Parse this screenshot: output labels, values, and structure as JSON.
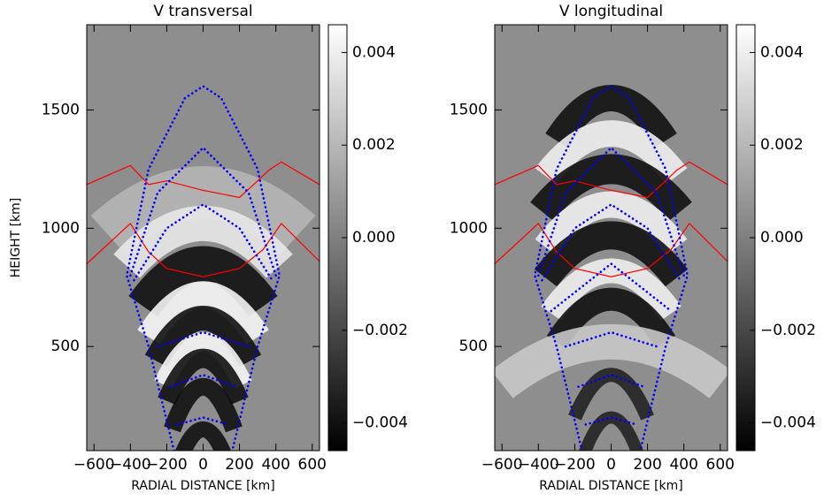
{
  "chart_data": [
    {
      "type": "line",
      "title": "V transversal",
      "xlabel": "RADIAL DISTANCE [km]",
      "ylabel": "HEIGHT [km]",
      "xlim": [
        -640,
        640
      ],
      "ylim": [
        60,
        1860
      ],
      "xticks": [
        {
          "value": -600,
          "label": "−600"
        },
        {
          "value": -400,
          "label": "−400"
        },
        {
          "value": -200,
          "label": "−200"
        },
        0,
        200,
        400,
        600
      ],
      "yticks": [
        500,
        1000,
        1500
      ],
      "colorbar": {
        "lim": [
          -0.0046,
          0.0046
        ],
        "ticks": [
          0.004,
          0.002,
          {
            "value": 0,
            "label": "0.000"
          },
          {
            "value": -0.002,
            "label": "−0.002"
          },
          {
            "value": -0.004,
            "label": "−0.004"
          }
        ]
      },
      "series": [
        {
          "color": "#ff0000",
          "style": "solid",
          "x": [
            -640,
            -400,
            -300,
            -200,
            0,
            200,
            300,
            360,
            430,
            640
          ],
          "values": [
            1185,
            1265,
            1185,
            1200,
            1160,
            1130,
            1200,
            1245,
            1280,
            1185
          ]
        },
        {
          "color": "#ff0000",
          "style": "solid",
          "x": [
            -640,
            -400,
            -300,
            -200,
            0,
            200,
            330,
            430,
            640
          ],
          "values": [
            850,
            1020,
            900,
            830,
            795,
            830,
            910,
            1020,
            860
          ]
        },
        {
          "color": "#0000ff",
          "style": "dotted",
          "x": [
            -160,
            -300,
            -420,
            -300,
            -100,
            0,
            100,
            300,
            420,
            300,
            160
          ],
          "values": [
            60,
            500,
            800,
            1250,
            1550,
            1600,
            1550,
            1250,
            800,
            500,
            60
          ]
        },
        {
          "color": "#0000ff",
          "style": "dotted",
          "x": [
            -400,
            -250,
            0,
            250,
            400
          ],
          "values": [
            800,
            1150,
            1340,
            1150,
            800
          ]
        },
        {
          "color": "#0000ff",
          "style": "dotted",
          "x": [
            -380,
            -200,
            0,
            200,
            380
          ],
          "values": [
            780,
            1000,
            1100,
            1000,
            780
          ]
        },
        {
          "color": "#0000ff",
          "style": "dotted",
          "x": [
            -250,
            0,
            250
          ],
          "values": [
            500,
            560,
            500
          ]
        },
        {
          "color": "#0000ff",
          "style": "dotted",
          "x": [
            -180,
            0,
            180
          ],
          "values": [
            330,
            380,
            330
          ]
        },
        {
          "color": "#0000ff",
          "style": "dotted",
          "x": [
            -140,
            0,
            140
          ],
          "values": [
            170,
            200,
            170
          ]
        }
      ]
    },
    {
      "type": "line",
      "title": "V longitudinal",
      "xlabel": "RADIAL DISTANCE [km]",
      "xlim": [
        -640,
        640
      ],
      "ylim": [
        60,
        1860
      ],
      "xticks": [
        {
          "value": -600,
          "label": "−600"
        },
        {
          "value": -400,
          "label": "−400"
        },
        {
          "value": -200,
          "label": "−200"
        },
        0,
        200,
        400,
        600
      ],
      "yticks": [
        500,
        1000,
        1500
      ],
      "colorbar": {
        "lim": [
          -0.0046,
          0.0046
        ],
        "ticks": [
          0.004,
          0.002,
          {
            "value": 0,
            "label": "0.000"
          },
          {
            "value": -0.002,
            "label": "−0.002"
          },
          {
            "value": -0.004,
            "label": "−0.004"
          }
        ]
      },
      "series": [
        {
          "color": "#ff0000",
          "style": "solid",
          "x": [
            -640,
            -400,
            -300,
            -200,
            0,
            200,
            300,
            360,
            430,
            640
          ],
          "values": [
            1185,
            1265,
            1185,
            1200,
            1160,
            1130,
            1200,
            1245,
            1280,
            1185
          ]
        },
        {
          "color": "#ff0000",
          "style": "solid",
          "x": [
            -640,
            -400,
            -300,
            -200,
            0,
            200,
            330,
            430,
            640
          ],
          "values": [
            850,
            1020,
            900,
            830,
            795,
            830,
            910,
            1020,
            860
          ]
        },
        {
          "color": "#0000ff",
          "style": "dotted",
          "x": [
            -160,
            -300,
            -420,
            -300,
            -100,
            0,
            100,
            300,
            420,
            300,
            160
          ],
          "values": [
            60,
            500,
            800,
            1250,
            1550,
            1600,
            1550,
            1250,
            800,
            500,
            60
          ]
        },
        {
          "color": "#0000ff",
          "style": "dotted",
          "x": [
            -400,
            -250,
            0,
            250,
            400
          ],
          "values": [
            800,
            1150,
            1340,
            1150,
            800
          ]
        },
        {
          "color": "#0000ff",
          "style": "dotted",
          "x": [
            -380,
            -200,
            0,
            200,
            380
          ],
          "values": [
            780,
            1000,
            1100,
            1000,
            780
          ]
        },
        {
          "color": "#0000ff",
          "style": "dotted",
          "x": [
            -330,
            0,
            330
          ],
          "values": [
            650,
            850,
            650
          ]
        },
        {
          "color": "#0000ff",
          "style": "dotted",
          "x": [
            -250,
            0,
            250
          ],
          "values": [
            500,
            560,
            500
          ]
        },
        {
          "color": "#0000ff",
          "style": "dotted",
          "x": [
            -180,
            0,
            180
          ],
          "values": [
            330,
            380,
            330
          ]
        },
        {
          "color": "#0000ff",
          "style": "dotted",
          "x": [
            -140,
            0,
            140
          ],
          "values": [
            170,
            200,
            170
          ]
        }
      ]
    }
  ]
}
